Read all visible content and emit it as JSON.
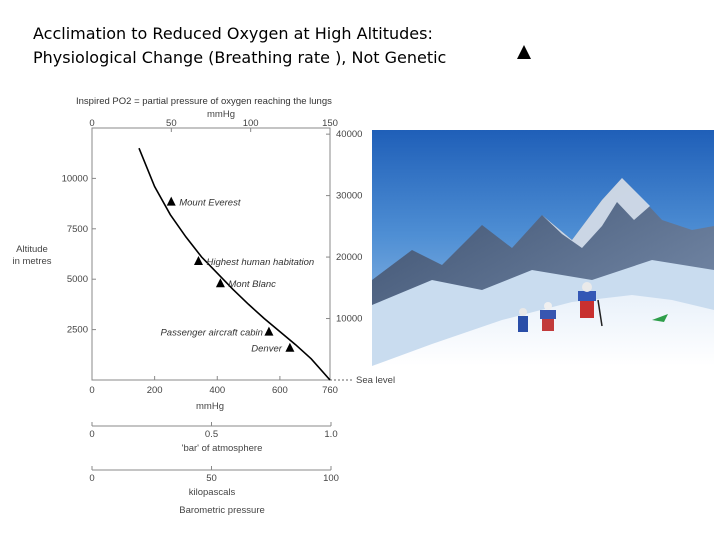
{
  "slide": {
    "title_line1": "Acclimation to Reduced Oxygen at High Altitudes:",
    "title_line2": "Physiological Change (Breathing rate ), Not Genetic",
    "arrow_icon": "up-arrow-icon"
  },
  "chart_data": {
    "type": "line",
    "caption": "Inspired PO2 = partial pressure of oxygen reaching the lungs",
    "top_axis": {
      "label": "mmHg",
      "ticks": [
        "0",
        "50",
        "100",
        "150"
      ],
      "range": [
        0,
        150
      ]
    },
    "bottom_axis": {
      "label": "mmHg",
      "ticks": [
        "0",
        "200",
        "400",
        "600",
        "760"
      ],
      "range": [
        0,
        760
      ]
    },
    "bar_axis": {
      "label": "'bar' of atmosphere",
      "ticks": [
        "0",
        "0.5",
        "1.0"
      ],
      "range": [
        0,
        1
      ]
    },
    "kpa_axis": {
      "label": "kilopascals",
      "ticks": [
        "0",
        "50",
        "100"
      ],
      "range": [
        0,
        100
      ]
    },
    "footer_label": "Barometric pressure",
    "left_axis": {
      "label_line1": "Altitude",
      "label_line2": "in metres",
      "ticks": [
        "2500",
        "5000",
        "7500",
        "10000"
      ],
      "range": [
        0,
        12500
      ]
    },
    "right_axis": {
      "ticks": [
        "10000",
        "20000",
        "30000",
        "40000"
      ],
      "range": [
        0,
        41000
      ]
    },
    "sea_level_label": "Sea level",
    "curve": {
      "x": [
        150,
        200,
        250,
        300,
        350,
        400,
        450,
        500,
        550,
        600,
        650,
        700,
        760
      ],
      "y": [
        11500,
        9600,
        8200,
        7100,
        6100,
        5300,
        4500,
        3750,
        3050,
        2400,
        1750,
        1050,
        0
      ]
    },
    "landmarks": [
      {
        "label": "Mount Everest",
        "x": 253,
        "y": 8848
      },
      {
        "label": "Highest human habitation",
        "x": 340,
        "y": 5900
      },
      {
        "label": "Mont Blanc",
        "x": 410,
        "y": 4800
      },
      {
        "label": "Passenger aircraft cabin",
        "x": 565,
        "y": 2400
      },
      {
        "label": "Denver",
        "x": 632,
        "y": 1600
      }
    ]
  }
}
